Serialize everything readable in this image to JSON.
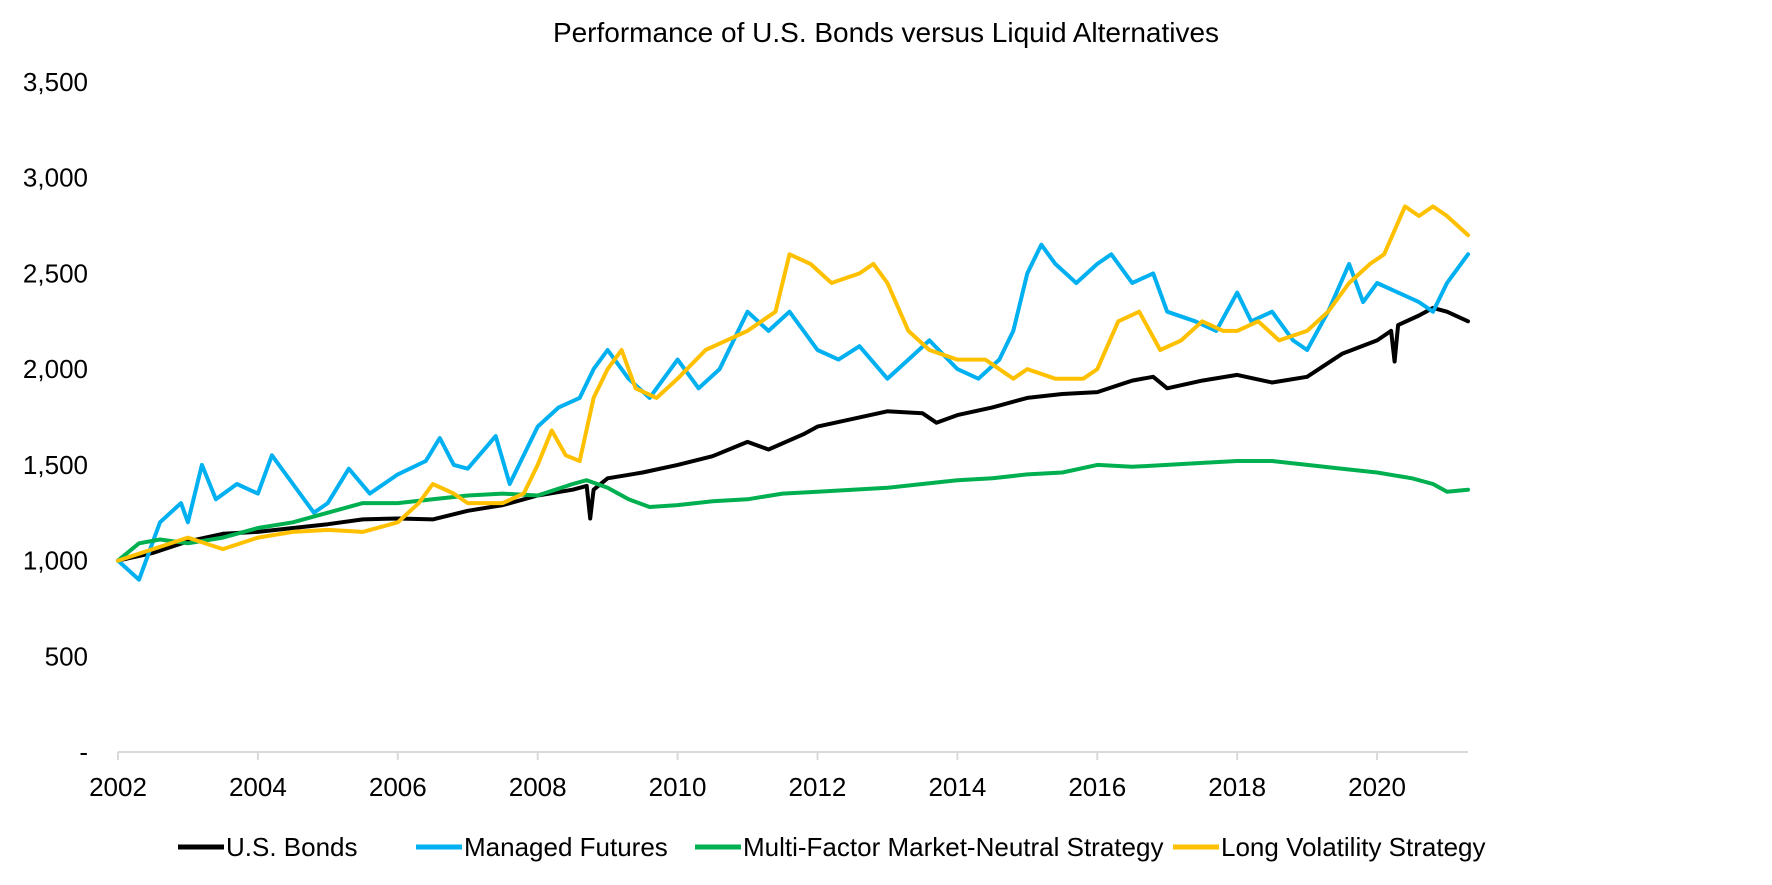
{
  "chart_data": {
    "type": "line",
    "title": "Performance of U.S. Bonds versus Liquid Alternatives",
    "xlabel": "",
    "ylabel": "",
    "xlim": [
      2002,
      2021.3
    ],
    "ylim": [
      0,
      3500
    ],
    "x_ticks": [
      2002,
      2004,
      2006,
      2008,
      2010,
      2012,
      2014,
      2016,
      2018,
      2020
    ],
    "x_tick_labels": [
      "2002",
      "2004",
      "2006",
      "2008",
      "2010",
      "2012",
      "2014",
      "2016",
      "2018",
      "2020"
    ],
    "y_ticks": [
      0,
      500,
      1000,
      1500,
      2000,
      2500,
      3000,
      3500
    ],
    "y_tick_labels": [
      "-",
      "500",
      "1,000",
      "1,500",
      "2,000",
      "2,500",
      "3,000",
      "3,500"
    ],
    "grid": false,
    "legend_position": "bottom",
    "series": [
      {
        "name": "U.S. Bonds",
        "color": "#000000",
        "points": [
          [
            2002.0,
            1000
          ],
          [
            2002.5,
            1040
          ],
          [
            2003.0,
            1100
          ],
          [
            2003.5,
            1140
          ],
          [
            2004.0,
            1150
          ],
          [
            2004.5,
            1170
          ],
          [
            2005.0,
            1190
          ],
          [
            2005.5,
            1215
          ],
          [
            2006.0,
            1220
          ],
          [
            2006.5,
            1215
          ],
          [
            2007.0,
            1260
          ],
          [
            2007.5,
            1290
          ],
          [
            2008.0,
            1340
          ],
          [
            2008.5,
            1370
          ],
          [
            2008.7,
            1390
          ],
          [
            2008.75,
            1220
          ],
          [
            2008.8,
            1370
          ],
          [
            2009.0,
            1430
          ],
          [
            2009.5,
            1460
          ],
          [
            2010.0,
            1500
          ],
          [
            2010.5,
            1545
          ],
          [
            2011.0,
            1620
          ],
          [
            2011.3,
            1580
          ],
          [
            2011.8,
            1660
          ],
          [
            2012.0,
            1700
          ],
          [
            2012.5,
            1740
          ],
          [
            2013.0,
            1780
          ],
          [
            2013.5,
            1770
          ],
          [
            2013.7,
            1720
          ],
          [
            2014.0,
            1760
          ],
          [
            2014.5,
            1800
          ],
          [
            2015.0,
            1850
          ],
          [
            2015.5,
            1870
          ],
          [
            2016.0,
            1880
          ],
          [
            2016.5,
            1940
          ],
          [
            2016.8,
            1960
          ],
          [
            2017.0,
            1900
          ],
          [
            2017.5,
            1940
          ],
          [
            2018.0,
            1970
          ],
          [
            2018.5,
            1930
          ],
          [
            2019.0,
            1960
          ],
          [
            2019.5,
            2080
          ],
          [
            2020.0,
            2150
          ],
          [
            2020.2,
            2200
          ],
          [
            2020.25,
            2040
          ],
          [
            2020.3,
            2230
          ],
          [
            2020.6,
            2280
          ],
          [
            2020.8,
            2320
          ],
          [
            2021.0,
            2300
          ],
          [
            2021.3,
            2250
          ]
        ]
      },
      {
        "name": "Managed Futures",
        "color": "#00B0F0",
        "points": [
          [
            2002.0,
            1000
          ],
          [
            2002.3,
            900
          ],
          [
            2002.6,
            1200
          ],
          [
            2002.9,
            1300
          ],
          [
            2003.0,
            1200
          ],
          [
            2003.2,
            1500
          ],
          [
            2003.4,
            1320
          ],
          [
            2003.7,
            1400
          ],
          [
            2004.0,
            1350
          ],
          [
            2004.2,
            1550
          ],
          [
            2004.5,
            1400
          ],
          [
            2004.8,
            1250
          ],
          [
            2005.0,
            1300
          ],
          [
            2005.3,
            1480
          ],
          [
            2005.6,
            1350
          ],
          [
            2006.0,
            1450
          ],
          [
            2006.4,
            1520
          ],
          [
            2006.6,
            1640
          ],
          [
            2006.8,
            1500
          ],
          [
            2007.0,
            1480
          ],
          [
            2007.4,
            1650
          ],
          [
            2007.6,
            1400
          ],
          [
            2007.8,
            1550
          ],
          [
            2008.0,
            1700
          ],
          [
            2008.3,
            1800
          ],
          [
            2008.6,
            1850
          ],
          [
            2008.8,
            2000
          ],
          [
            2009.0,
            2100
          ],
          [
            2009.3,
            1950
          ],
          [
            2009.6,
            1850
          ],
          [
            2010.0,
            2050
          ],
          [
            2010.3,
            1900
          ],
          [
            2010.6,
            2000
          ],
          [
            2011.0,
            2300
          ],
          [
            2011.3,
            2200
          ],
          [
            2011.6,
            2300
          ],
          [
            2012.0,
            2100
          ],
          [
            2012.3,
            2050
          ],
          [
            2012.6,
            2120
          ],
          [
            2013.0,
            1950
          ],
          [
            2013.3,
            2050
          ],
          [
            2013.6,
            2150
          ],
          [
            2014.0,
            2000
          ],
          [
            2014.3,
            1950
          ],
          [
            2014.6,
            2050
          ],
          [
            2014.8,
            2200
          ],
          [
            2015.0,
            2500
          ],
          [
            2015.2,
            2650
          ],
          [
            2015.4,
            2550
          ],
          [
            2015.7,
            2450
          ],
          [
            2016.0,
            2550
          ],
          [
            2016.2,
            2600
          ],
          [
            2016.5,
            2450
          ],
          [
            2016.8,
            2500
          ],
          [
            2017.0,
            2300
          ],
          [
            2017.4,
            2250
          ],
          [
            2017.7,
            2200
          ],
          [
            2018.0,
            2400
          ],
          [
            2018.2,
            2250
          ],
          [
            2018.5,
            2300
          ],
          [
            2018.8,
            2150
          ],
          [
            2019.0,
            2100
          ],
          [
            2019.3,
            2300
          ],
          [
            2019.6,
            2550
          ],
          [
            2019.8,
            2350
          ],
          [
            2020.0,
            2450
          ],
          [
            2020.3,
            2400
          ],
          [
            2020.6,
            2350
          ],
          [
            2020.8,
            2300
          ],
          [
            2021.0,
            2450
          ],
          [
            2021.3,
            2600
          ]
        ]
      },
      {
        "name": "Multi-Factor Market-Neutral Strategy",
        "color": "#00B050",
        "points": [
          [
            2002.0,
            1000
          ],
          [
            2002.3,
            1090
          ],
          [
            2002.6,
            1110
          ],
          [
            2003.0,
            1090
          ],
          [
            2003.5,
            1120
          ],
          [
            2004.0,
            1170
          ],
          [
            2004.5,
            1200
          ],
          [
            2005.0,
            1250
          ],
          [
            2005.5,
            1300
          ],
          [
            2006.0,
            1300
          ],
          [
            2006.5,
            1320
          ],
          [
            2007.0,
            1340
          ],
          [
            2007.5,
            1350
          ],
          [
            2008.0,
            1340
          ],
          [
            2008.5,
            1400
          ],
          [
            2008.7,
            1420
          ],
          [
            2009.0,
            1380
          ],
          [
            2009.3,
            1320
          ],
          [
            2009.6,
            1280
          ],
          [
            2010.0,
            1290
          ],
          [
            2010.5,
            1310
          ],
          [
            2011.0,
            1320
          ],
          [
            2011.5,
            1350
          ],
          [
            2012.0,
            1360
          ],
          [
            2012.5,
            1370
          ],
          [
            2013.0,
            1380
          ],
          [
            2013.5,
            1400
          ],
          [
            2014.0,
            1420
          ],
          [
            2014.5,
            1430
          ],
          [
            2015.0,
            1450
          ],
          [
            2015.5,
            1460
          ],
          [
            2016.0,
            1500
          ],
          [
            2016.5,
            1490
          ],
          [
            2017.0,
            1500
          ],
          [
            2017.5,
            1510
          ],
          [
            2018.0,
            1520
          ],
          [
            2018.5,
            1520
          ],
          [
            2019.0,
            1500
          ],
          [
            2019.5,
            1480
          ],
          [
            2020.0,
            1460
          ],
          [
            2020.5,
            1430
          ],
          [
            2020.8,
            1400
          ],
          [
            2021.0,
            1360
          ],
          [
            2021.3,
            1370
          ]
        ]
      },
      {
        "name": "Long Volatility Strategy",
        "color": "#FFC000",
        "points": [
          [
            2002.0,
            1000
          ],
          [
            2002.5,
            1060
          ],
          [
            2003.0,
            1120
          ],
          [
            2003.5,
            1060
          ],
          [
            2004.0,
            1120
          ],
          [
            2004.5,
            1150
          ],
          [
            2005.0,
            1160
          ],
          [
            2005.5,
            1150
          ],
          [
            2006.0,
            1200
          ],
          [
            2006.3,
            1300
          ],
          [
            2006.5,
            1400
          ],
          [
            2006.8,
            1350
          ],
          [
            2007.0,
            1300
          ],
          [
            2007.5,
            1300
          ],
          [
            2007.8,
            1350
          ],
          [
            2008.0,
            1500
          ],
          [
            2008.2,
            1680
          ],
          [
            2008.4,
            1550
          ],
          [
            2008.6,
            1520
          ],
          [
            2008.8,
            1850
          ],
          [
            2009.0,
            2000
          ],
          [
            2009.2,
            2100
          ],
          [
            2009.4,
            1900
          ],
          [
            2009.7,
            1850
          ],
          [
            2010.0,
            1950
          ],
          [
            2010.4,
            2100
          ],
          [
            2010.7,
            2150
          ],
          [
            2011.0,
            2200
          ],
          [
            2011.4,
            2300
          ],
          [
            2011.6,
            2600
          ],
          [
            2011.9,
            2550
          ],
          [
            2012.2,
            2450
          ],
          [
            2012.6,
            2500
          ],
          [
            2012.8,
            2550
          ],
          [
            2013.0,
            2450
          ],
          [
            2013.3,
            2200
          ],
          [
            2013.6,
            2100
          ],
          [
            2014.0,
            2050
          ],
          [
            2014.4,
            2050
          ],
          [
            2014.8,
            1950
          ],
          [
            2015.0,
            2000
          ],
          [
            2015.4,
            1950
          ],
          [
            2015.8,
            1950
          ],
          [
            2016.0,
            2000
          ],
          [
            2016.3,
            2250
          ],
          [
            2016.6,
            2300
          ],
          [
            2016.9,
            2100
          ],
          [
            2017.2,
            2150
          ],
          [
            2017.5,
            2250
          ],
          [
            2017.8,
            2200
          ],
          [
            2018.0,
            2200
          ],
          [
            2018.3,
            2250
          ],
          [
            2018.6,
            2150
          ],
          [
            2019.0,
            2200
          ],
          [
            2019.3,
            2300
          ],
          [
            2019.6,
            2450
          ],
          [
            2019.9,
            2550
          ],
          [
            2020.1,
            2600
          ],
          [
            2020.4,
            2850
          ],
          [
            2020.6,
            2800
          ],
          [
            2020.8,
            2850
          ],
          [
            2021.0,
            2800
          ],
          [
            2021.3,
            2700
          ]
        ]
      }
    ]
  }
}
